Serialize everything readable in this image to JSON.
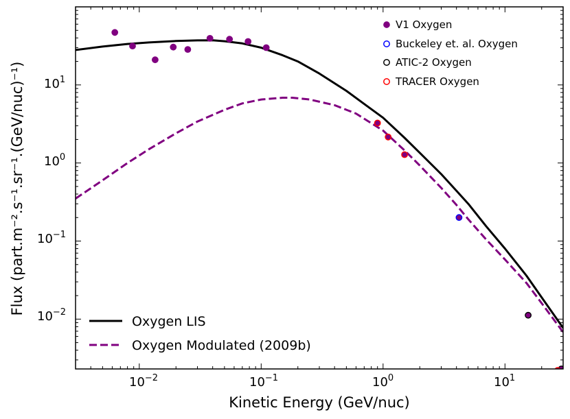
{
  "chart_data": {
    "type": "scatter",
    "xscale": "log",
    "yscale": "log",
    "xlim": [
      0.003,
      30
    ],
    "ylim": [
      0.0023,
      100
    ],
    "xlabel": "Kinetic Energy (GeV/nuc)",
    "ylabel": "Flux (part.m⁻².s⁻¹.sr⁻¹.(GeV/nuc)⁻¹)",
    "x_ticks": [
      {
        "value": 0.01,
        "base": "10",
        "exp": "−2"
      },
      {
        "value": 0.1,
        "base": "10",
        "exp": "−1"
      },
      {
        "value": 1,
        "base": "10",
        "exp": "0"
      },
      {
        "value": 10,
        "base": "10",
        "exp": "1"
      }
    ],
    "y_ticks": [
      {
        "value": 10,
        "base": "10",
        "exp": "1"
      },
      {
        "value": 1,
        "base": "10",
        "exp": "0"
      },
      {
        "value": 0.1,
        "base": "10",
        "exp": "−1"
      },
      {
        "value": 0.01,
        "base": "10",
        "exp": "−2"
      }
    ],
    "lines": [
      {
        "name": "Oxygen LIS",
        "color": "#000000",
        "dash": "solid",
        "x": [
          0.003,
          0.005,
          0.008,
          0.012,
          0.02,
          0.03,
          0.04,
          0.05,
          0.07,
          0.1,
          0.15,
          0.2,
          0.3,
          0.5,
          0.7,
          1.0,
          1.5,
          2.0,
          3.0,
          4.0,
          5.0,
          7.0,
          10.0,
          15.0,
          20.0,
          30.0
        ],
        "y": [
          28,
          31,
          33.5,
          35,
          36.5,
          37.2,
          37.3,
          36.3,
          34.0,
          30.0,
          24.0,
          20.0,
          14.0,
          8.4,
          5.7,
          3.8,
          2.1,
          1.35,
          0.72,
          0.44,
          0.3,
          0.155,
          0.08,
          0.036,
          0.019,
          0.0077
        ]
      },
      {
        "name": "Oxygen Modulated (2009b)",
        "color": "#800080",
        "dash": "dashed",
        "x": [
          0.003,
          0.005,
          0.008,
          0.012,
          0.02,
          0.03,
          0.05,
          0.07,
          0.1,
          0.15,
          0.18,
          0.25,
          0.4,
          0.6,
          1.0,
          1.5,
          2.0,
          3.0,
          4.0,
          5.0,
          7.0,
          10.0,
          15.0,
          20.0,
          30.0
        ],
        "y": [
          0.35,
          0.6,
          1.0,
          1.5,
          2.4,
          3.4,
          4.8,
          5.8,
          6.5,
          6.85,
          6.85,
          6.5,
          5.5,
          4.3,
          2.6,
          1.45,
          0.93,
          0.48,
          0.29,
          0.19,
          0.105,
          0.058,
          0.029,
          0.016,
          0.0068
        ]
      }
    ],
    "series": [
      {
        "name": "V1 Oxygen",
        "marker": "filled",
        "color": "#800080",
        "edge": "#800080",
        "x": [
          0.0063,
          0.0088,
          0.0135,
          0.019,
          0.025,
          0.038,
          0.055,
          0.078,
          0.11
        ],
        "y": [
          47,
          31.5,
          21,
          30.5,
          28.5,
          39.5,
          38.5,
          36,
          30
        ]
      },
      {
        "name": "Buckeley et. al. Oxygen",
        "marker": "open",
        "color": "#800080",
        "edge": "#0000ff",
        "x": [
          4.2
        ],
        "y": [
          0.2
        ]
      },
      {
        "name": "ATIC-2 Oxygen",
        "marker": "open",
        "color": "#800080",
        "edge": "#000000",
        "x": [
          15.5,
          29
        ],
        "y": [
          0.0112,
          0.0023
        ]
      },
      {
        "name": "TRACER Oxygen",
        "marker": "open",
        "color": "#800080",
        "edge": "#ff0000",
        "x": [
          0.9,
          1.1,
          1.5,
          27
        ],
        "y": [
          3.25,
          2.15,
          1.28,
          0.0022
        ]
      }
    ],
    "legend_upper": [
      "V1 Oxygen",
      "Buckeley et. al. Oxygen",
      "ATIC-2 Oxygen",
      "TRACER Oxygen"
    ],
    "legend_lower": [
      "Oxygen LIS",
      "Oxygen Modulated (2009b)"
    ],
    "legend_placement": {
      "upper": "top-right",
      "lower": "bottom-left"
    }
  }
}
